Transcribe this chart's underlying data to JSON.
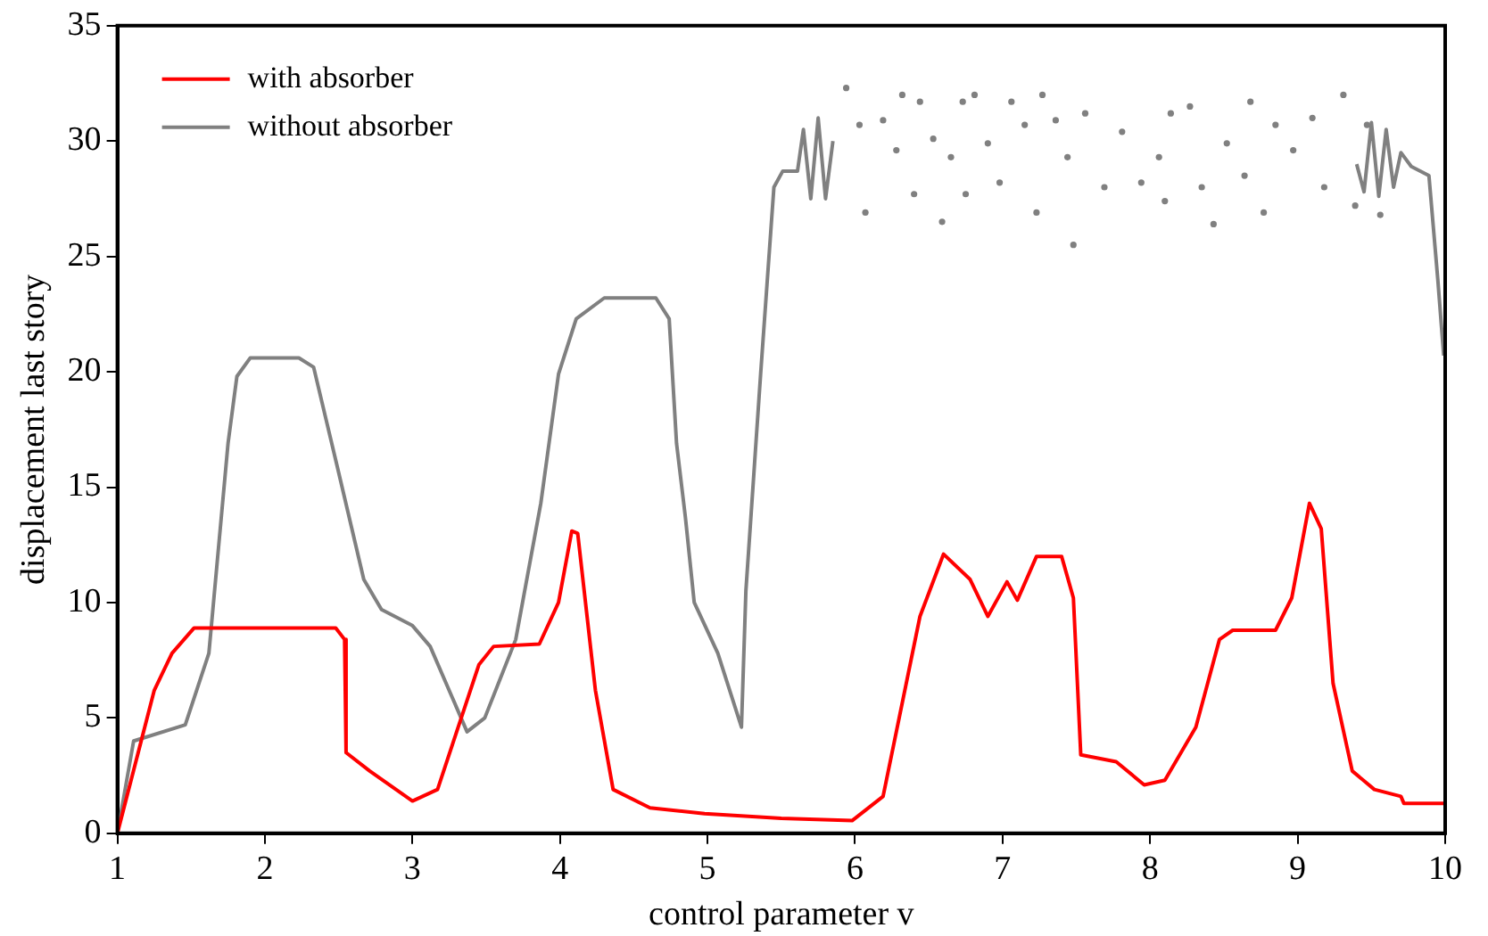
{
  "chart_data": {
    "type": "line",
    "xlabel": "control parameter v",
    "ylabel": "displacement last story",
    "xlim": [
      1,
      10
    ],
    "ylim": [
      0,
      35
    ],
    "xticks": [
      1,
      2,
      3,
      4,
      5,
      6,
      7,
      8,
      9,
      10
    ],
    "yticks": [
      0,
      5,
      10,
      15,
      20,
      25,
      30,
      35
    ],
    "grid": false,
    "legend": "top left",
    "line_style": "solid",
    "series": [
      {
        "name": "with absorber",
        "color": "#ff0000",
        "type": "line",
        "marker": "none",
        "x": [
          1,
          1.25,
          1.37,
          1.52,
          2.48,
          2.54,
          2.55,
          2.71,
          3.0,
          3.17,
          3.45,
          3.55,
          3.86,
          3.99,
          4.08,
          4.12,
          4.24,
          4.36,
          4.61,
          4.98,
          5.5,
          5.98,
          6.19,
          6.44,
          6.6,
          6.78,
          6.9,
          7.03,
          7.1,
          7.23,
          7.4,
          7.48,
          7.53,
          7.77,
          7.96,
          8.1,
          8.31,
          8.47,
          8.56,
          8.85,
          8.96,
          9.08,
          9.16,
          9.24,
          9.37,
          9.52,
          9.7,
          9.72,
          9.99
        ],
        "values": [
          0,
          6.2,
          7.8,
          8.9,
          8.9,
          8.4,
          3.5,
          2.7,
          1.4,
          1.9,
          7.3,
          8.1,
          8.2,
          10,
          13.1,
          13,
          6.2,
          1.9,
          1.1,
          0.85,
          0.65,
          0.55,
          1.6,
          9.4,
          12.1,
          11,
          9.4,
          10.9,
          10.1,
          12,
          12,
          10.2,
          3.4,
          3.1,
          2.1,
          2.3,
          4.6,
          8.4,
          8.8,
          8.8,
          10.2,
          14.3,
          13.2,
          6.5,
          2.7,
          1.9,
          1.6,
          1.3,
          1.3
        ]
      },
      {
        "name": "without absorber",
        "color": "#808080",
        "type": "line",
        "marker": "none",
        "x": [
          1,
          1.11,
          1.46,
          1.62,
          1.75,
          1.81,
          1.9,
          2.23,
          2.33,
          2.49,
          2.67,
          2.79,
          3.0,
          3.12,
          3.37,
          3.49,
          3.7,
          3.87,
          3.99,
          4.11,
          4.3,
          4.65,
          4.74,
          4.79,
          4.85,
          4.91,
          5.07,
          5.2,
          5.23,
          5.26,
          5.36,
          5.45,
          5.51,
          5.61,
          5.65,
          5.7,
          5.75,
          5.8,
          5.85,
          5.9,
          9.4,
          9.45,
          9.5,
          9.55,
          9.6,
          9.65,
          9.7,
          9.77,
          9.89,
          9.95,
          9.99
        ],
        "values": [
          0,
          4,
          4.7,
          7.8,
          16.9,
          19.8,
          20.6,
          20.6,
          20.2,
          15.9,
          11,
          9.7,
          9,
          8.1,
          4.4,
          5,
          8.4,
          14.3,
          19.9,
          22.3,
          23.2,
          23.2,
          22.3,
          16.9,
          13.7,
          10,
          7.8,
          5.2,
          4.6,
          10.5,
          19.9,
          28,
          28.7,
          28.7,
          30.5,
          27.5,
          31,
          27.5,
          30,
          null,
          29,
          27.8,
          30.8,
          27.6,
          30.5,
          28,
          29.5,
          28.9,
          28.5,
          24,
          20.7
        ]
      },
      {
        "color": "#808080",
        "type": "scatter",
        "marker": "circle",
        "x": [
          5.94,
          6.03,
          6.07,
          6.19,
          6.28,
          6.32,
          6.4,
          6.44,
          6.53,
          6.59,
          6.65,
          6.73,
          6.75,
          6.81,
          6.9,
          6.98,
          7.06,
          7.15,
          7.23,
          7.27,
          7.36,
          7.44,
          7.48,
          7.56,
          7.69,
          7.81,
          7.94,
          8.06,
          8.1,
          8.14,
          8.27,
          8.35,
          8.43,
          8.52,
          8.64,
          8.68,
          8.77,
          8.85,
          8.97,
          9.1,
          9.18,
          9.31,
          9.39,
          9.47,
          9.56
        ],
        "values": [
          32.3,
          30.7,
          26.9,
          30.9,
          29.6,
          32,
          27.7,
          31.7,
          30.1,
          26.5,
          29.3,
          31.7,
          27.7,
          32,
          29.9,
          28.2,
          31.7,
          30.7,
          26.9,
          32,
          30.9,
          29.3,
          25.5,
          31.2,
          28,
          30.4,
          28.2,
          29.3,
          27.4,
          31.2,
          31.5,
          28,
          26.4,
          29.9,
          28.5,
          31.7,
          26.9,
          30.7,
          29.6,
          31,
          28,
          32,
          27.2,
          30.7,
          26.8
        ]
      }
    ]
  }
}
